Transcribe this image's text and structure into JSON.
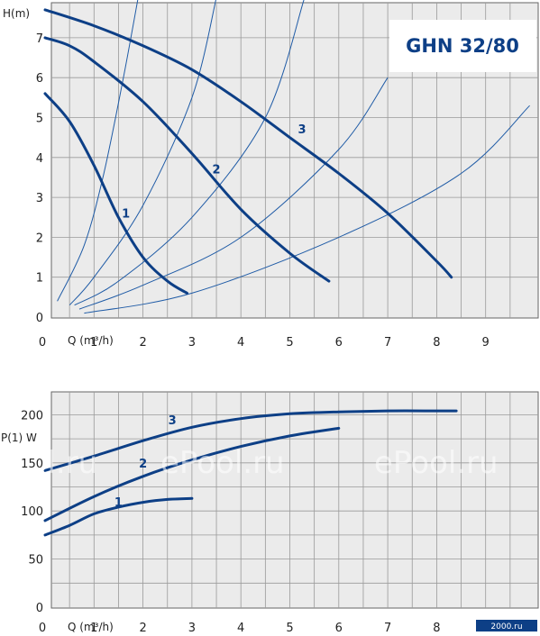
{
  "chart_data": [
    {
      "type": "line",
      "title": "GHN 32/80",
      "ylabel": "H(m)",
      "xlabel": "Q (m³/h)",
      "xlim": [
        0,
        10
      ],
      "ylim": [
        0,
        8
      ],
      "grid": true,
      "x_ticks": [
        "0",
        "1",
        "2",
        "3",
        "4",
        "5",
        "6",
        "7",
        "8",
        "9"
      ],
      "y_ticks": [
        "0",
        "1",
        "2",
        "3",
        "4",
        "5",
        "6",
        "7"
      ],
      "series": [
        {
          "name": "1",
          "x": [
            0,
            0.5,
            1.0,
            1.5,
            2.0,
            2.5,
            2.9
          ],
          "y": [
            5.6,
            4.9,
            3.8,
            2.5,
            1.5,
            0.9,
            0.6
          ]
        },
        {
          "name": "2",
          "x": [
            0,
            0.5,
            1.0,
            2.0,
            3.0,
            4.0,
            5.0,
            5.8
          ],
          "y": [
            7.0,
            6.8,
            6.4,
            5.4,
            4.1,
            2.7,
            1.6,
            0.9
          ]
        },
        {
          "name": "3",
          "x": [
            0,
            1.0,
            2.0,
            3.0,
            4.0,
            5.0,
            6.0,
            7.0,
            8.0,
            8.3
          ],
          "y": [
            7.7,
            7.3,
            6.8,
            6.2,
            5.4,
            4.5,
            3.6,
            2.6,
            1.4,
            1.0
          ]
        }
      ],
      "system_curves": [
        {
          "x": [
            0.25,
            0.8,
            1.2,
            1.6,
            1.9
          ],
          "y": [
            0.4,
            1.8,
            3.6,
            6.0,
            8.0
          ]
        },
        {
          "x": [
            0.5,
            1.0,
            2.0,
            3.0,
            3.5
          ],
          "y": [
            0.3,
            1.0,
            2.8,
            5.5,
            8.0
          ]
        },
        {
          "x": [
            0.6,
            1.5,
            3.0,
            4.5,
            5.3
          ],
          "y": [
            0.3,
            0.9,
            2.5,
            5.0,
            8.0
          ]
        },
        {
          "x": [
            0.7,
            2.0,
            4.0,
            6.0,
            7.0
          ],
          "y": [
            0.2,
            0.8,
            2.0,
            4.2,
            6.0
          ]
        },
        {
          "x": [
            0.8,
            3.0,
            6.0,
            8.5,
            9.9
          ],
          "y": [
            0.1,
            0.6,
            2.0,
            3.6,
            5.3
          ]
        }
      ],
      "curve_labels": [
        {
          "text": "1",
          "x": 1.65,
          "y": 2.5
        },
        {
          "text": "2",
          "x": 3.5,
          "y": 3.6
        },
        {
          "text": "3",
          "x": 5.25,
          "y": 4.6
        }
      ]
    },
    {
      "type": "line",
      "ylabel": "P(1) W",
      "xlabel": "Q (m³/h)",
      "xlim": [
        0,
        10
      ],
      "ylim": [
        0,
        225
      ],
      "grid": true,
      "x_ticks": [
        "0",
        "1",
        "2",
        "3",
        "4",
        "5",
        "6",
        "7",
        "8",
        "9"
      ],
      "y_ticks": [
        "0",
        "50",
        "100",
        "150",
        "200"
      ],
      "series": [
        {
          "name": "1",
          "x": [
            0,
            0.5,
            1.0,
            1.5,
            2.0,
            2.5,
            3.0
          ],
          "y": [
            75,
            85,
            97,
            104,
            109,
            112,
            113
          ]
        },
        {
          "name": "2",
          "x": [
            0,
            1.0,
            2.0,
            3.0,
            4.0,
            5.0,
            6.0
          ],
          "y": [
            90,
            115,
            136,
            153,
            167,
            178,
            186
          ]
        },
        {
          "name": "3",
          "x": [
            0,
            1.0,
            2.0,
            3.0,
            4.0,
            5.0,
            6.0,
            7.0,
            8.0,
            8.4
          ],
          "y": [
            142,
            157,
            173,
            187,
            196,
            201,
            203,
            204,
            204,
            204
          ]
        }
      ],
      "curve_labels": [
        {
          "text": "1",
          "x": 1.5,
          "y": 105
        },
        {
          "text": "2",
          "x": 2.0,
          "y": 145
        },
        {
          "text": "3",
          "x": 2.6,
          "y": 190
        }
      ]
    }
  ],
  "watermarks": [
    "oool.ru",
    "ePool.ru",
    "ePool.ru"
  ],
  "brand": "2000.ru",
  "colors": {
    "background": "#ebebeb",
    "grid": "#9a9a9a",
    "pump_curve": "#0d3f86",
    "system_curve": "#1f5ba6",
    "label_box": "#ffffff"
  }
}
